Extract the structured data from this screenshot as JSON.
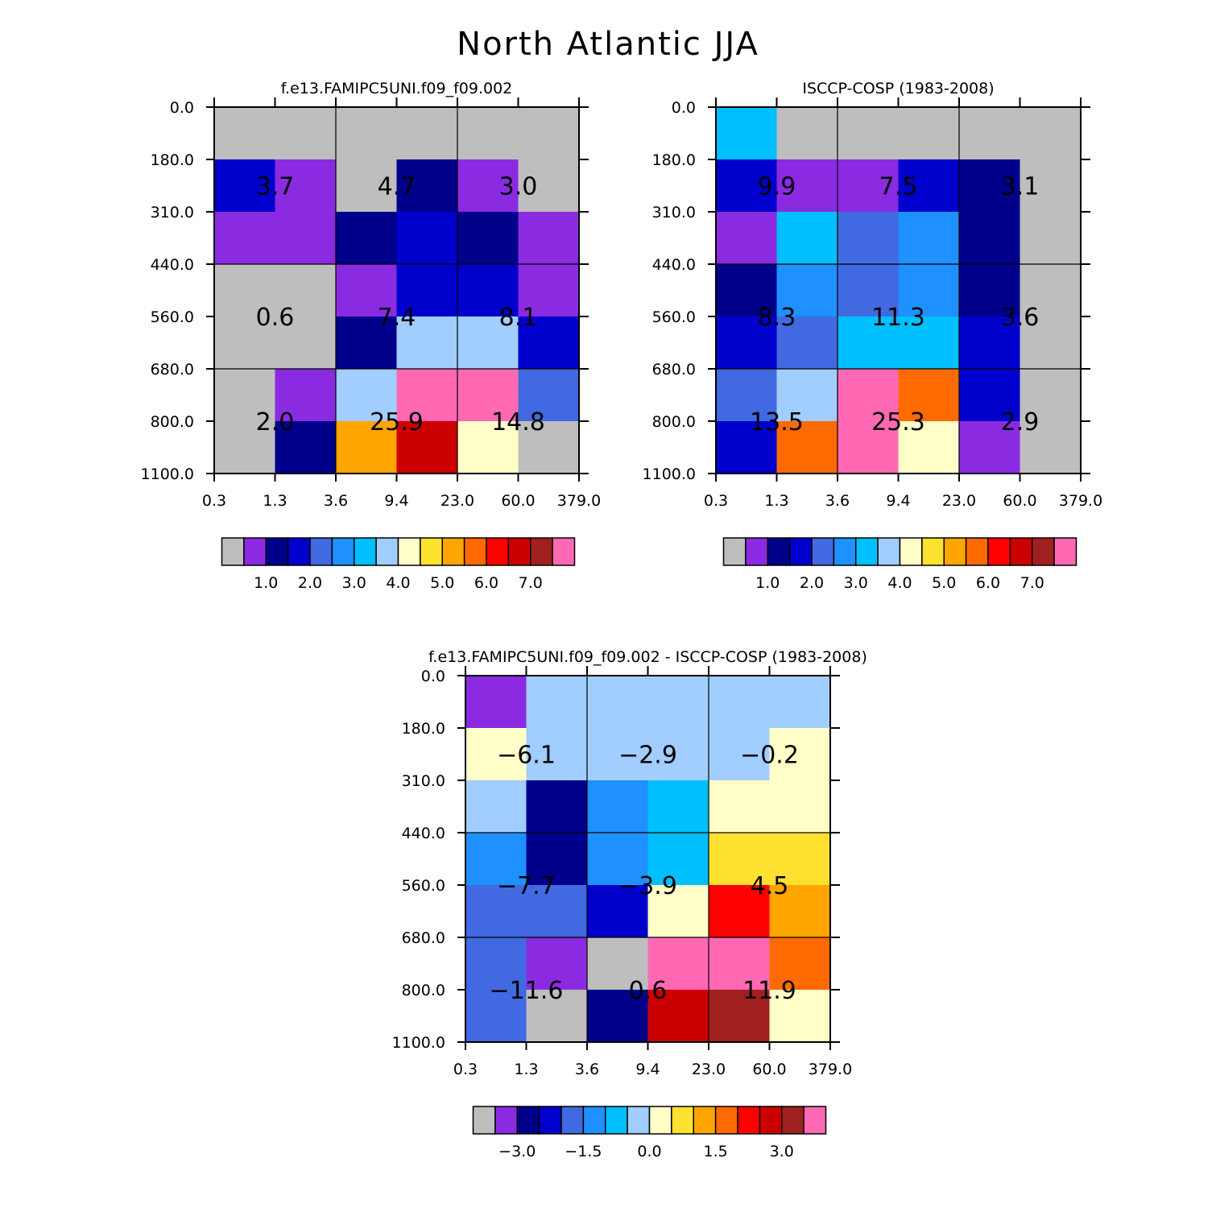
{
  "figure": {
    "title": "North Atlantic JJA",
    "colors": {
      "background": "#ffffff",
      "missing": "#bebebe"
    }
  },
  "chart_data": [
    {
      "type": "heatmap",
      "title": "f.e13.FAMIPC5UNI.f09_f09.002",
      "x_tick_labels": [
        "0.3",
        "1.3",
        "3.6",
        "9.4",
        "23.0",
        "60.0",
        "379.0"
      ],
      "y_tick_labels": [
        "0.0",
        "180.0",
        "310.0",
        "440.0",
        "560.0",
        "680.0",
        "800.0",
        "1100.0"
      ],
      "cell_colors": [
        [
          "#bebebe",
          "#bebebe",
          "#bebebe",
          "#bebebe",
          "#bebebe",
          "#bebebe"
        ],
        [
          "#0000cd",
          "#8a2be2",
          "#bebebe",
          "#00008b",
          "#8a2be2",
          "#bebebe"
        ],
        [
          "#8a2be2",
          "#8a2be2",
          "#00008b",
          "#0000cd",
          "#00008b",
          "#8a2be2"
        ],
        [
          "#bebebe",
          "#bebebe",
          "#8a2be2",
          "#0000cd",
          "#0000cd",
          "#8a2be2"
        ],
        [
          "#bebebe",
          "#bebebe",
          "#00008b",
          "#a2cdff",
          "#a2cdff",
          "#0000cd"
        ],
        [
          "#bebebe",
          "#8a2be2",
          "#a2cdff",
          "#ff69b4",
          "#ff69b4",
          "#4169e1"
        ],
        [
          "#bebebe",
          "#00008b",
          "#ffa500",
          "#cd0000",
          "#ffffc8",
          "#bebebe"
        ]
      ],
      "group_values": [
        [
          "3.7",
          "4.7",
          "3.0"
        ],
        [
          "0.6",
          "7.4",
          "8.1"
        ],
        [
          "2.0",
          "25.9",
          "14.8"
        ]
      ],
      "colorbar": {
        "colors": [
          "#bebebe",
          "#8a2be2",
          "#00008b",
          "#0000cd",
          "#4169e1",
          "#1e90ff",
          "#00bfff",
          "#a2cdff",
          "#ffffc8",
          "#ffe130",
          "#ffa500",
          "#ff6a00",
          "#ff0000",
          "#cd0000",
          "#a02020",
          "#ff69b4"
        ],
        "labels": [
          "1.0",
          "2.0",
          "3.0",
          "4.0",
          "5.0",
          "6.0",
          "7.0"
        ],
        "label_boundaries": [
          2,
          4,
          6,
          8,
          10,
          12,
          14
        ]
      }
    },
    {
      "type": "heatmap",
      "title": "ISCCP-COSP (1983-2008)",
      "x_tick_labels": [
        "0.3",
        "1.3",
        "3.6",
        "9.4",
        "23.0",
        "60.0",
        "379.0"
      ],
      "y_tick_labels": [
        "0.0",
        "180.0",
        "310.0",
        "440.0",
        "560.0",
        "680.0",
        "800.0",
        "1100.0"
      ],
      "cell_colors": [
        [
          "#00bfff",
          "#bebebe",
          "#bebebe",
          "#bebebe",
          "#bebebe",
          "#bebebe"
        ],
        [
          "#0000cd",
          "#8a2be2",
          "#8a2be2",
          "#0000cd",
          "#00008b",
          "#bebebe"
        ],
        [
          "#8a2be2",
          "#00bfff",
          "#4169e1",
          "#1e90ff",
          "#00008b",
          "#bebebe"
        ],
        [
          "#00008b",
          "#1e90ff",
          "#4169e1",
          "#1e90ff",
          "#00008b",
          "#bebebe"
        ],
        [
          "#0000cd",
          "#4169e1",
          "#00bfff",
          "#00bfff",
          "#0000cd",
          "#bebebe"
        ],
        [
          "#4169e1",
          "#a2cdff",
          "#ff69b4",
          "#ff6a00",
          "#0000cd",
          "#bebebe"
        ],
        [
          "#0000cd",
          "#ff6a00",
          "#ff69b4",
          "#ffffc8",
          "#8a2be2",
          "#bebebe"
        ]
      ],
      "group_values": [
        [
          "9.9",
          "7.5",
          "3.1"
        ],
        [
          "8.3",
          "11.3",
          "3.6"
        ],
        [
          "13.5",
          "25.3",
          "2.9"
        ]
      ],
      "colorbar": {
        "colors": [
          "#bebebe",
          "#8a2be2",
          "#00008b",
          "#0000cd",
          "#4169e1",
          "#1e90ff",
          "#00bfff",
          "#a2cdff",
          "#ffffc8",
          "#ffe130",
          "#ffa500",
          "#ff6a00",
          "#ff0000",
          "#cd0000",
          "#a02020",
          "#ff69b4"
        ],
        "labels": [
          "1.0",
          "2.0",
          "3.0",
          "4.0",
          "5.0",
          "6.0",
          "7.0"
        ],
        "label_boundaries": [
          2,
          4,
          6,
          8,
          10,
          12,
          14
        ]
      }
    },
    {
      "type": "heatmap",
      "title": "f.e13.FAMIPC5UNI.f09_f09.002 - ISCCP-COSP (1983-2008)",
      "x_tick_labels": [
        "0.3",
        "1.3",
        "3.6",
        "9.4",
        "23.0",
        "60.0",
        "379.0"
      ],
      "y_tick_labels": [
        "0.0",
        "180.0",
        "310.0",
        "440.0",
        "560.0",
        "680.0",
        "800.0",
        "1100.0"
      ],
      "cell_colors": [
        [
          "#8a2be2",
          "#a2cdff",
          "#a2cdff",
          "#a2cdff",
          "#a2cdff",
          "#a2cdff"
        ],
        [
          "#ffffc8",
          "#a2cdff",
          "#a2cdff",
          "#a2cdff",
          "#a2cdff",
          "#ffffc8"
        ],
        [
          "#a2cdff",
          "#00008b",
          "#1e90ff",
          "#00bfff",
          "#ffffc8",
          "#ffffc8"
        ],
        [
          "#1e90ff",
          "#00008b",
          "#1e90ff",
          "#00bfff",
          "#ffe130",
          "#ffe130"
        ],
        [
          "#4169e1",
          "#4169e1",
          "#0000cd",
          "#ffffc8",
          "#ff0000",
          "#ffa500"
        ],
        [
          "#4169e1",
          "#8a2be2",
          "#bebebe",
          "#ff69b4",
          "#ff69b4",
          "#ff6a00"
        ],
        [
          "#4169e1",
          "#bebebe",
          "#00008b",
          "#cd0000",
          "#a02020",
          "#ffffc8"
        ]
      ],
      "group_values": [
        [
          "−6.1",
          "−2.9",
          "−0.2"
        ],
        [
          "−7.7",
          "−3.9",
          "4.5"
        ],
        [
          "−11.6",
          "0.6",
          "11.9"
        ]
      ],
      "colorbar": {
        "colors": [
          "#bebebe",
          "#8a2be2",
          "#00008b",
          "#0000cd",
          "#4169e1",
          "#1e90ff",
          "#00bfff",
          "#a2cdff",
          "#ffffc8",
          "#ffe130",
          "#ffa500",
          "#ff6a00",
          "#ff0000",
          "#cd0000",
          "#a02020",
          "#ff69b4"
        ],
        "labels": [
          "−3.0",
          "−1.5",
          "0.0",
          "1.5",
          "3.0"
        ],
        "label_boundaries": [
          2,
          5,
          8,
          11,
          14
        ]
      }
    }
  ]
}
